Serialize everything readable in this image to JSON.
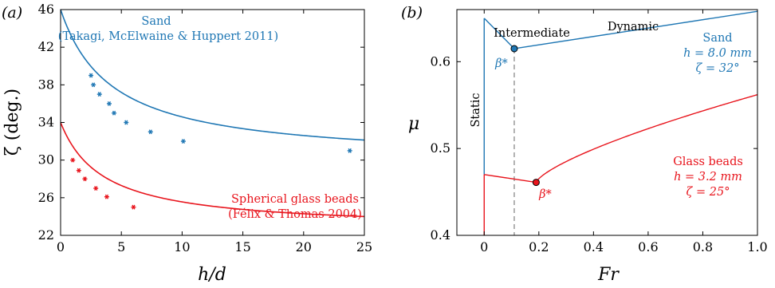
{
  "colors": {
    "sand": "#1f77b4",
    "glass": "#e8141c",
    "axis": "#000000",
    "dashed": "#808080"
  },
  "chart_data": [
    {
      "panel_label": "(a)",
      "type": "scatter",
      "xlabel": "h/d",
      "ylabel": "ζ (deg.)",
      "xlim": [
        0,
        25
      ],
      "ylim": [
        22,
        46
      ],
      "x_ticks": [
        0,
        5,
        10,
        15,
        20,
        25
      ],
      "y_ticks": [
        22,
        26,
        30,
        34,
        38,
        42,
        46
      ],
      "grid": false,
      "series": [
        {
          "name": "Sand",
          "source": "(Takagi, McElwaine & Huppert 2011)",
          "color_key": "sand",
          "points": [
            {
              "x": 2.5,
              "y": 39.0
            },
            {
              "x": 2.7,
              "y": 38.0
            },
            {
              "x": 3.2,
              "y": 37.0
            },
            {
              "x": 4.0,
              "y": 36.0
            },
            {
              "x": 4.4,
              "y": 35.0
            },
            {
              "x": 5.4,
              "y": 34.0
            },
            {
              "x": 7.4,
              "y": 33.0
            },
            {
              "x": 10.1,
              "y": 32.0
            },
            {
              "x": 23.8,
              "y": 31.0
            }
          ],
          "curve": {
            "asymptote": 29.8,
            "amplitude": 16.2,
            "scale": 4.2
          }
        },
        {
          "name": "Spherical glass beads",
          "source": "(Félix & Thomas 2004)",
          "color_key": "glass",
          "points": [
            {
              "x": 1.0,
              "y": 30.0
            },
            {
              "x": 1.5,
              "y": 28.9
            },
            {
              "x": 2.0,
              "y": 28.0
            },
            {
              "x": 2.9,
              "y": 27.0
            },
            {
              "x": 3.8,
              "y": 26.1
            },
            {
              "x": 6.0,
              "y": 25.0
            }
          ],
          "curve": {
            "asymptote": 22.6,
            "amplitude": 11.4,
            "scale": 3.5
          }
        }
      ]
    },
    {
      "panel_label": "(b)",
      "type": "line",
      "xlabel": "Fr",
      "ylabel": "μ",
      "xlim": [
        -0.1,
        1.0
      ],
      "ylim": [
        0.4,
        0.66
      ],
      "x_ticks": [
        0,
        0.2,
        0.4,
        0.6,
        0.8,
        1.0
      ],
      "x_tick_labels": [
        "0",
        "0.2",
        "0.4",
        "0.6",
        "0.8",
        "1.0"
      ],
      "y_ticks": [
        0.4,
        0.5,
        0.6
      ],
      "y_tick_labels": [
        "0.4",
        "0.5",
        "0.6"
      ],
      "grid": false,
      "regions": {
        "static": "Static",
        "intermediate": "Intermediate",
        "dynamic": "Dynamic"
      },
      "series": [
        {
          "name": "Sand",
          "h_label": "h = 8.0 mm",
          "zeta_label": "ζ = 32°",
          "color_key": "sand",
          "static_range": [
            0.47,
            0.65
          ],
          "intermediate": [
            {
              "x": 0,
              "y": 0.65
            },
            {
              "x": 0.11,
              "y": 0.615
            }
          ],
          "dynamic": [
            {
              "x": 0.11,
              "y": 0.615
            },
            {
              "x": 1.0,
              "y": 0.658
            }
          ],
          "beta_point": {
            "x": 0.11,
            "y": 0.615,
            "label": "β*"
          }
        },
        {
          "name": "Glass beads",
          "h_label": "h = 3.2 mm",
          "zeta_label": "ζ = 25°",
          "color_key": "glass",
          "static_range": [
            0.4,
            0.47
          ],
          "intermediate": [
            {
              "x": 0,
              "y": 0.47
            },
            {
              "x": 0.19,
              "y": 0.461
            }
          ],
          "dynamic_curve": {
            "x_start": 0.19,
            "y_start": 0.461,
            "x_end": 1.0,
            "y_end": 0.562,
            "exponent": 0.72
          },
          "beta_point": {
            "x": 0.19,
            "y": 0.461,
            "label": "β*"
          }
        }
      ],
      "beta_dashed_x": 0.11
    }
  ]
}
